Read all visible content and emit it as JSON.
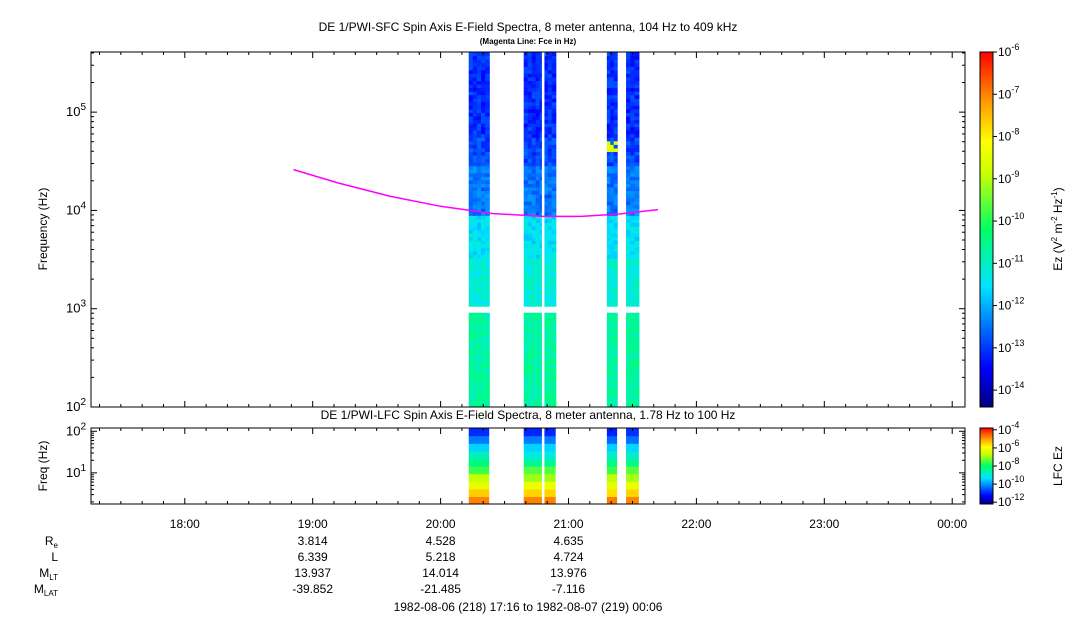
{
  "chart_data": [
    {
      "type": "heatmap",
      "title": "DE 1/PWI-SFC  Spin Axis E-Field Spectra, 8 meter antenna, 104 Hz to 409 kHz",
      "subtitle": "(Magenta Line: Fce in Hz)",
      "ylabel": "Frequency (Hz)",
      "yscale": "log",
      "ylim": [
        100,
        409000
      ],
      "ytick_labels": [
        {
          "base": "10",
          "exp": "2"
        },
        {
          "base": "10",
          "exp": "3"
        },
        {
          "base": "10",
          "exp": "4"
        },
        {
          "base": "10",
          "exp": "5"
        }
      ],
      "colorbar": {
        "label": "Ez (V2 m-2 Hz-1)",
        "label_parts": {
          "a": "Ez (V",
          "b": "2",
          "c": " m",
          "d": "-2",
          "e": " Hz",
          "f": "-1",
          "g": ")"
        },
        "range_log10": [
          -14.4,
          -6
        ],
        "tick_labels": [
          {
            "base": "10",
            "exp": "-6"
          },
          {
            "base": "10",
            "exp": "-7"
          },
          {
            "base": "10",
            "exp": "-8"
          },
          {
            "base": "10",
            "exp": "-9"
          },
          {
            "base": "10",
            "exp": "-10"
          },
          {
            "base": "10",
            "exp": "-11"
          },
          {
            "base": "10",
            "exp": "-12"
          },
          {
            "base": "10",
            "exp": "-13"
          },
          {
            "base": "10",
            "exp": "-14"
          }
        ]
      },
      "data_intervals_ut": [
        [
          20.22,
          20.38
        ],
        [
          20.65,
          20.9
        ],
        [
          21.3,
          21.38
        ],
        [
          21.45,
          21.55
        ]
      ],
      "fce_line": {
        "name": "Fce",
        "color": "#ff00ff",
        "t_hours": [
          18.85,
          19.2,
          19.6,
          20.0,
          20.4,
          20.8,
          21.1,
          21.4,
          21.7
        ],
        "freq_hz": [
          26000,
          19000,
          14000,
          11000,
          9300,
          8700,
          8700,
          9200,
          10200
        ]
      }
    },
    {
      "type": "heatmap",
      "title": "DE 1/PWI-LFC  Spin Axis E-Field Spectra, 8 meter antenna, 1.78 Hz to 100 Hz",
      "ylabel": "Freq (Hz)",
      "yscale": "log",
      "ylim": [
        1.78,
        120
      ],
      "ytick_labels": [
        {
          "base": "10",
          "exp": "1"
        },
        {
          "base": "10",
          "exp": "2"
        }
      ],
      "colorbar": {
        "label": "LFC Ez",
        "range_log10": [
          -12.2,
          -3.8
        ],
        "tick_labels": [
          {
            "base": "10",
            "exp": "-4"
          },
          {
            "base": "10",
            "exp": "-6"
          },
          {
            "base": "10",
            "exp": "-8"
          },
          {
            "base": "10",
            "exp": "-10"
          },
          {
            "base": "10",
            "exp": "-12"
          }
        ]
      },
      "data_intervals_ut": [
        [
          20.22,
          20.38
        ],
        [
          20.65,
          20.9
        ],
        [
          21.3,
          21.38
        ],
        [
          21.45,
          21.55
        ]
      ]
    }
  ],
  "time_axis": {
    "xlim_hours": [
      17.2667,
      24.1
    ],
    "tick_labels": [
      "18:00",
      "19:00",
      "20:00",
      "21:00",
      "22:00",
      "23:00",
      "00:00"
    ]
  },
  "orbit": {
    "row_labels": {
      "re": {
        "main": "R",
        "sub": "e"
      },
      "l": {
        "main": "L",
        "sub": ""
      },
      "mlt": {
        "main": "M",
        "sub": "LT"
      },
      "mlat": {
        "main": "M",
        "sub": "LAT"
      }
    },
    "columns": [
      {
        "time": "19:00",
        "re": "3.814",
        "l": "6.339",
        "mlt": "13.937",
        "mlat": "-39.852"
      },
      {
        "time": "20:00",
        "re": "4.528",
        "l": "5.218",
        "mlt": "14.014",
        "mlat": "-21.485"
      },
      {
        "time": "21:00",
        "re": "4.635",
        "l": "4.724",
        "mlt": "13.976",
        "mlat": "-7.116"
      }
    ]
  },
  "date_range": "1982-08-06 (218) 17:16 to 1982-08-07 (219) 00:06"
}
